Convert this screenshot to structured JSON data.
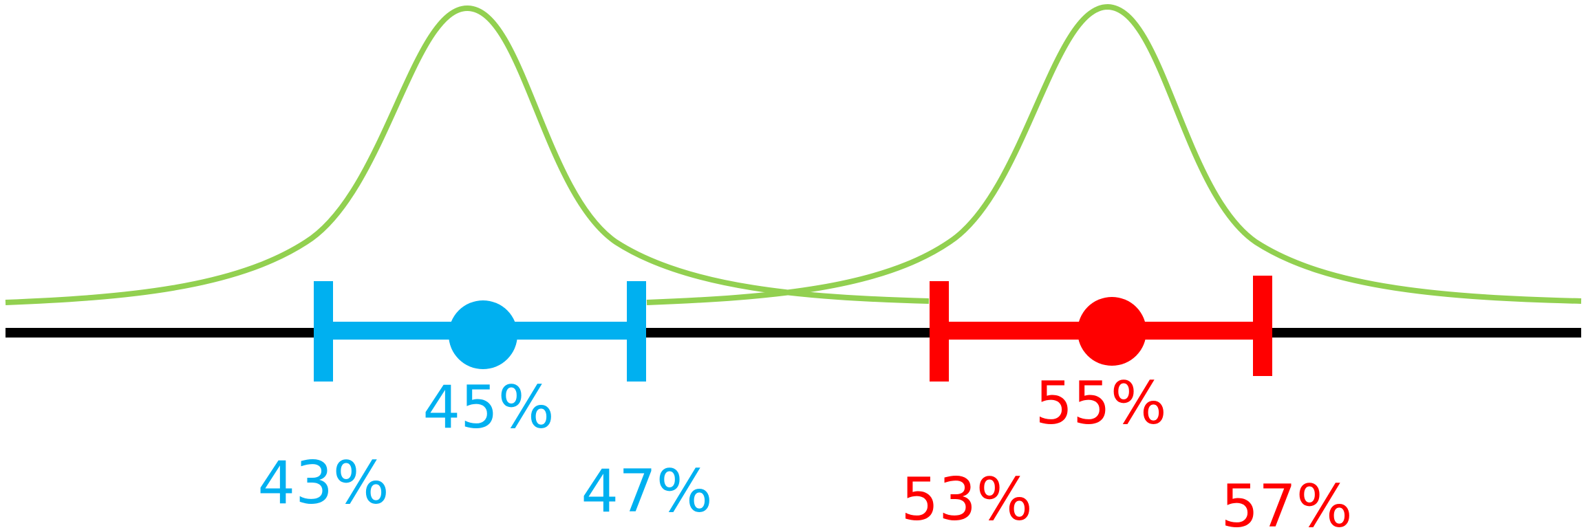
{
  "colors": {
    "curve": "#92D050",
    "axis": "#000000",
    "left_interval": "#00B0F0",
    "right_interval": "#FF0000",
    "background": "#FFFFFF"
  },
  "chart_data": {
    "type": "diagram",
    "intervals": [
      {
        "name": "",
        "center_label": "45%",
        "low_label": "43%",
        "high_label": "47%",
        "center": 45,
        "low": 43,
        "high": 47,
        "color": "#00B0F0"
      },
      {
        "name": "",
        "center_label": "55%",
        "low_label": "53%",
        "high_label": "57%",
        "center": 55,
        "low": 53,
        "high": 57,
        "color": "#FF0000"
      }
    ]
  }
}
